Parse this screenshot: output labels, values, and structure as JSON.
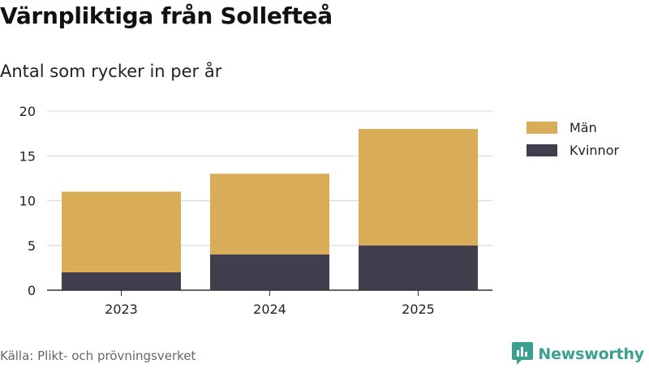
{
  "title": "Värnpliktiga från Sollefteå",
  "subtitle": "Antal som rycker in per år",
  "source": "Källa: Plikt- och prövningsverket",
  "brand": {
    "name": "Newsworthy",
    "logo_icon": "newsworthy-logo-icon",
    "color": "#3aa18f"
  },
  "chart_data": {
    "type": "bar",
    "stacked": true,
    "categories": [
      "2023",
      "2024",
      "2025"
    ],
    "series": [
      {
        "name": "Kvinnor",
        "values": [
          2,
          4,
          5
        ],
        "color": "#413f4e"
      },
      {
        "name": "Män",
        "values": [
          9,
          9,
          13
        ],
        "color": "#d9ac58"
      }
    ],
    "ylim": [
      0,
      20
    ],
    "yticks": [
      0,
      5,
      10,
      15,
      20
    ],
    "grid": true,
    "legend_position": "right",
    "legend_order": [
      "Män",
      "Kvinnor"
    ]
  }
}
